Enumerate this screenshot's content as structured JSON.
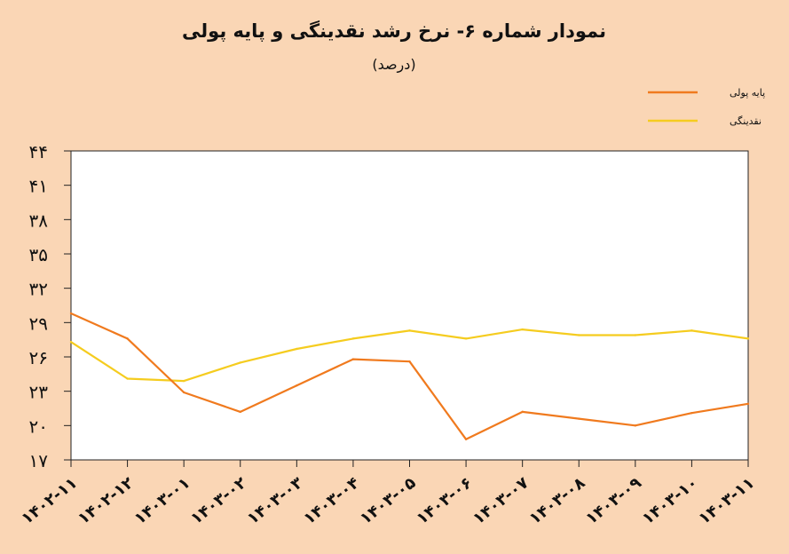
{
  "chart_data": {
    "type": "line",
    "title": "نمودار شماره ۶- نرخ رشد نقدینگی و پایه پولی",
    "subtitle": "(درصد)",
    "categories": [
      "۱۴۰۲-۱۱",
      "۱۴۰۲-۱۲",
      "۱۴۰۳-۰۱",
      "۱۴۰۳-۰۲",
      "۱۴۰۳-۰۳",
      "۱۴۰۳-۰۴",
      "۱۴۰۳-۰۵",
      "۱۴۰۳-۰۶",
      "۱۴۰۳-۰۷",
      "۱۴۰۳-۰۸",
      "۱۴۰۳-۰۹",
      "۱۴۰۳-۱۰",
      "۱۴۰۳-۱۱"
    ],
    "series": [
      {
        "name": "پایه پولی",
        "color": "#F07A1E",
        "values": [
          29.8,
          27.6,
          22.9,
          21.2,
          23.5,
          25.8,
          25.6,
          18.8,
          21.2,
          20.6,
          20.0,
          21.1,
          21.9
        ]
      },
      {
        "name": "نقدینگی",
        "color": "#F5CC1F",
        "values": [
          27.3,
          24.1,
          23.9,
          25.5,
          26.7,
          27.6,
          28.3,
          27.6,
          28.4,
          27.9,
          27.9,
          28.3,
          27.6
        ]
      }
    ],
    "ylim": [
      17,
      44
    ],
    "yticks": [
      "۱۷",
      "۲۰",
      "۲۳",
      "۲۶",
      "۲۹",
      "۳۲",
      "۳۵",
      "۳۸",
      "۴۱",
      "۴۴"
    ],
    "legend_position": "top-right",
    "grid": false
  }
}
